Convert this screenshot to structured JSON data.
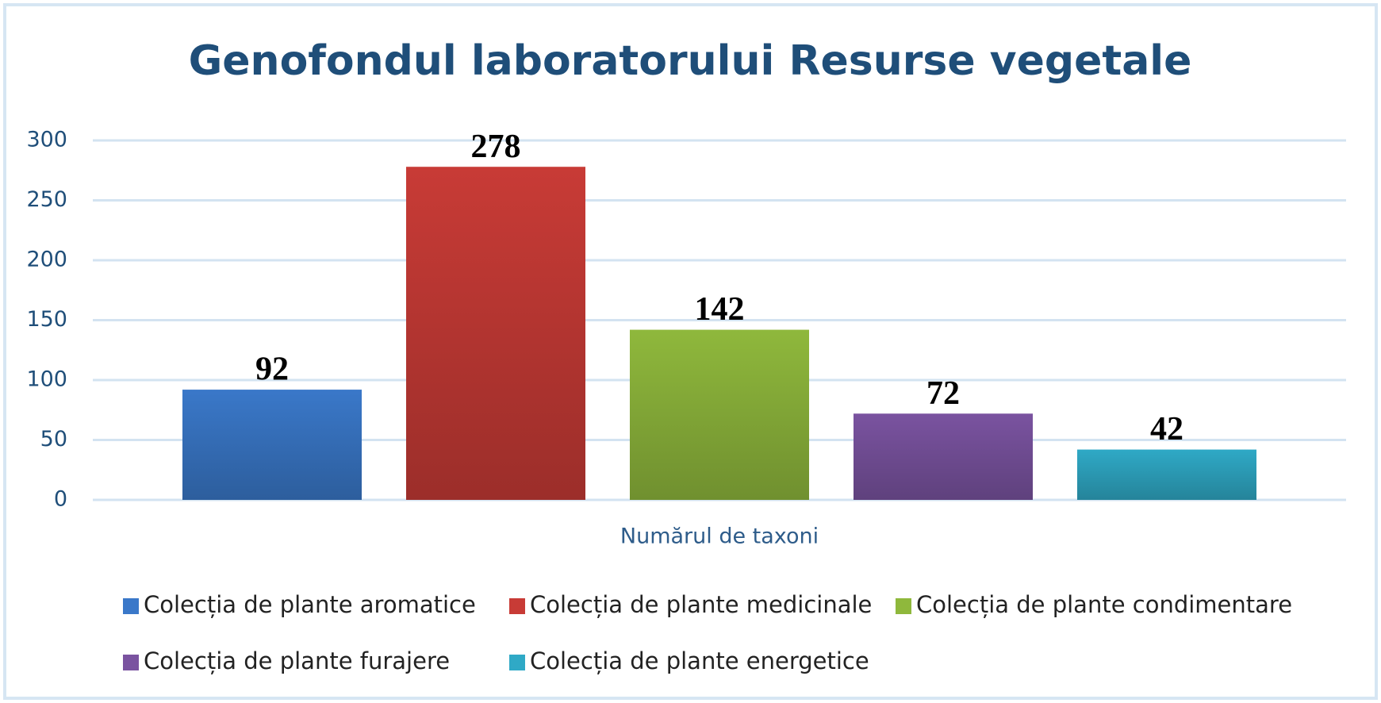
{
  "chart_data": {
    "type": "bar",
    "title": "Genofondul laboratorului Resurse vegetale",
    "categories": [
      "Numărul de taxoni"
    ],
    "series": [
      {
        "name": "Colecția de plante aromatice",
        "color": "#3a78c9",
        "values": [
          92
        ]
      },
      {
        "name": "Colecția de plante medicinale",
        "color": "#c83b36",
        "values": [
          278
        ]
      },
      {
        "name": "Colecția de plante condimentare",
        "color": "#8fb83c",
        "values": [
          142
        ]
      },
      {
        "name": "Colecția de plante furajere",
        "color": "#7a53a0",
        "values": [
          72
        ]
      },
      {
        "name": "Colecția de plante energetice",
        "color": "#2fa9c6",
        "values": [
          42
        ]
      }
    ],
    "ylim": [
      0,
      300
    ],
    "yticks": [
      0,
      50,
      100,
      150,
      200,
      250,
      300
    ],
    "grid": true,
    "legend": "bottom",
    "data_labels": true
  }
}
